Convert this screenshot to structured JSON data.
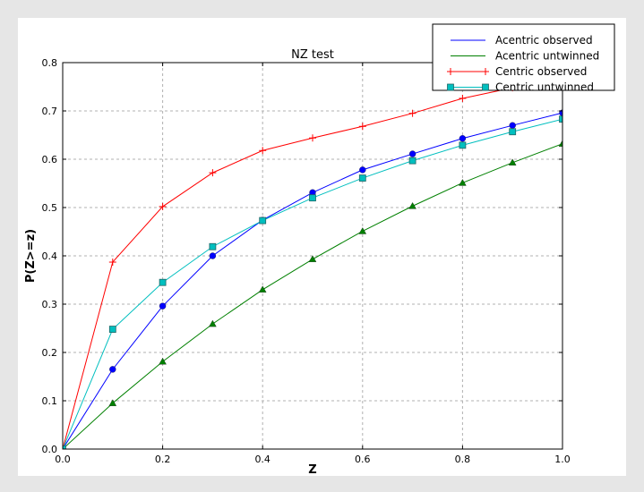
{
  "chart_data": {
    "type": "line",
    "title": "NZ test",
    "xlabel": "Z",
    "ylabel": "P(Z>=z)",
    "xlim": [
      0.0,
      1.0
    ],
    "ylim": [
      0.0,
      0.8
    ],
    "xticks": [
      "0.0",
      "0.2",
      "0.4",
      "0.6",
      "0.8",
      "1.0"
    ],
    "yticks": [
      "0.0",
      "0.1",
      "0.2",
      "0.3",
      "0.4",
      "0.5",
      "0.6",
      "0.7",
      "0.8"
    ],
    "grid": true,
    "legend_position": "top-right",
    "x": [
      0.0,
      0.1,
      0.2,
      0.3,
      0.4,
      0.5,
      0.6,
      0.7,
      0.8,
      0.9,
      1.0
    ],
    "series": [
      {
        "name": "Acentric observed",
        "color": "#0000ff",
        "marker": "circle",
        "values": [
          0.0,
          0.165,
          0.296,
          0.4,
          0.474,
          0.531,
          0.578,
          0.611,
          0.643,
          0.67,
          0.696
        ]
      },
      {
        "name": "Acentric untwinned",
        "color": "#008000",
        "marker": "triangle",
        "values": [
          0.0,
          0.095,
          0.181,
          0.259,
          0.33,
          0.393,
          0.451,
          0.503,
          0.551,
          0.593,
          0.632
        ]
      },
      {
        "name": "Centric observed",
        "color": "#ff0000",
        "marker": "plus",
        "values": [
          0.0,
          0.387,
          0.502,
          0.572,
          0.618,
          0.644,
          0.668,
          0.695,
          0.726,
          0.748,
          0.77
        ]
      },
      {
        "name": "Centric untwinned",
        "color": "#00bfbf",
        "marker": "square",
        "values": [
          0.0,
          0.248,
          0.345,
          0.419,
          0.473,
          0.52,
          0.561,
          0.597,
          0.629,
          0.657,
          0.683
        ]
      }
    ]
  }
}
